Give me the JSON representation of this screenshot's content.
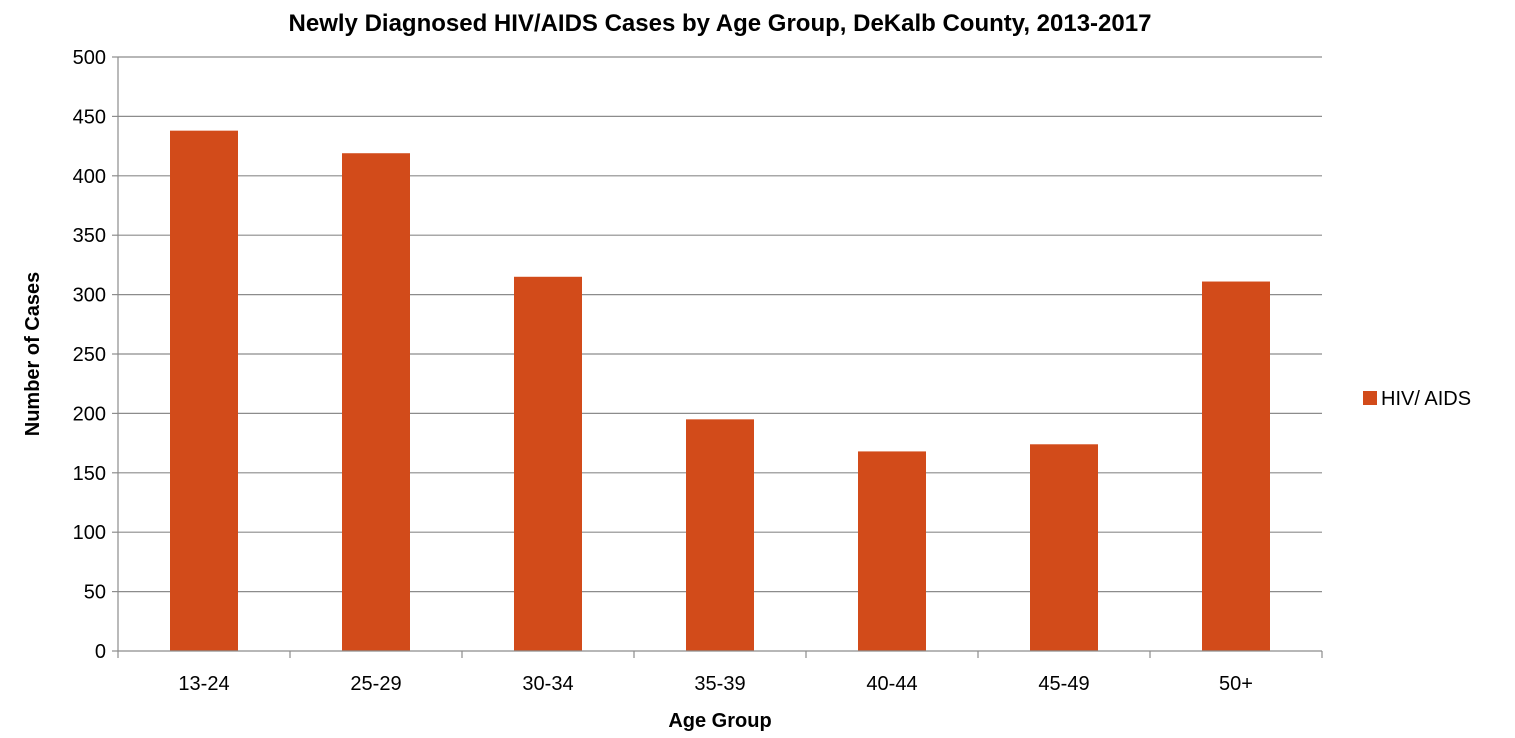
{
  "chart_data": {
    "type": "bar",
    "title": "Newly Diagnosed HIV/AIDS Cases by Age Group, DeKalb County, 2013-2017",
    "xlabel": "Age Group",
    "ylabel": "Number of Cases",
    "categories": [
      "13-24",
      "25-29",
      "30-34",
      "35-39",
      "40-44",
      "45-49",
      "50+"
    ],
    "series": [
      {
        "name": "HIV/ AIDS",
        "values": [
          438,
          419,
          315,
          195,
          168,
          174,
          311
        ],
        "color": "#d24b1a"
      }
    ],
    "ylim": [
      0,
      500
    ],
    "yticks": [
      0,
      50,
      100,
      150,
      200,
      250,
      300,
      350,
      400,
      450,
      500
    ],
    "grid": true,
    "legend_position": "right"
  }
}
